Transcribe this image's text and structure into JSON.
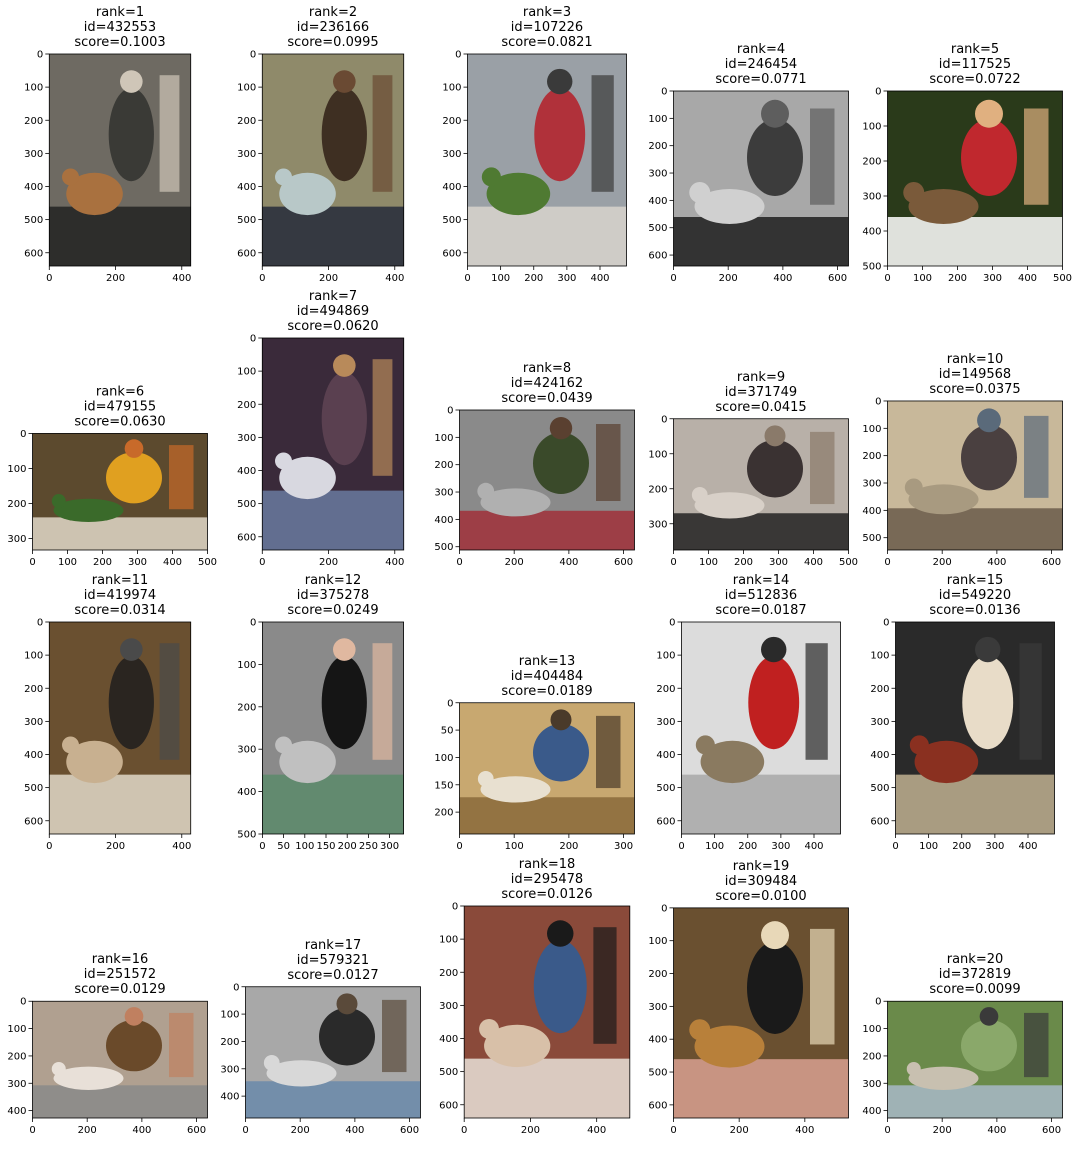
{
  "chart_data": [
    {
      "type": "image",
      "rank_label": "rank=1",
      "id_label": "id=432553",
      "score_label": "score=0.1003",
      "rank": 1,
      "id": 432553,
      "score": 0.1003,
      "width": 427,
      "height": 640,
      "xticks": [
        0,
        200,
        400
      ],
      "yticks": [
        0,
        100,
        200,
        300,
        400,
        500,
        600
      ],
      "colors": {
        "bg": "#6e6a62",
        "c1": "#3a3a36",
        "c2": "#a9713f",
        "c3": "#cfc6b8",
        "c4": "#222222"
      }
    },
    {
      "type": "image",
      "rank_label": "rank=2",
      "id_label": "id=236166",
      "score_label": "score=0.0995",
      "rank": 2,
      "id": 236166,
      "score": 0.0995,
      "width": 427,
      "height": 640,
      "xticks": [
        0,
        200,
        400
      ],
      "yticks": [
        0,
        100,
        200,
        300,
        400,
        500,
        600
      ],
      "colors": {
        "bg": "#8f8a6a",
        "c1": "#3e2f22",
        "c2": "#b8c8c8",
        "c3": "#6a4a33",
        "c4": "#262a3a"
      }
    },
    {
      "type": "image",
      "rank_label": "rank=3",
      "id_label": "id=107226",
      "score_label": "score=0.0821",
      "rank": 3,
      "id": 107226,
      "score": 0.0821,
      "width": 480,
      "height": 640,
      "xticks": [
        0,
        100,
        200,
        300,
        400
      ],
      "yticks": [
        0,
        100,
        200,
        300,
        400,
        500,
        600
      ],
      "colors": {
        "bg": "#9aa0a6",
        "c1": "#b0313a",
        "c2": "#4f7a32",
        "c3": "#3a3a3a",
        "c4": "#d8d4cc"
      }
    },
    {
      "type": "image",
      "rank_label": "rank=4",
      "id_label": "id=246454",
      "score_label": "score=0.0771",
      "rank": 4,
      "id": 246454,
      "score": 0.0771,
      "width": 640,
      "height": 640,
      "xticks": [
        0,
        200,
        400,
        600
      ],
      "yticks": [
        0,
        100,
        200,
        300,
        400,
        500,
        600
      ],
      "colors": {
        "bg": "#a8a8a8",
        "c1": "#3c3c3c",
        "c2": "#d0d0d0",
        "c3": "#5e5e5e",
        "c4": "#1e1e1e"
      }
    },
    {
      "type": "image",
      "rank_label": "rank=5",
      "id_label": "id=117525",
      "score_label": "score=0.0722",
      "rank": 5,
      "id": 117525,
      "score": 0.0722,
      "width": 500,
      "height": 500,
      "xticks": [
        0,
        100,
        200,
        300,
        400,
        500
      ],
      "yticks": [
        0,
        100,
        200,
        300,
        400,
        500
      ],
      "colors": {
        "bg": "#2a3a1a",
        "c1": "#c0282e",
        "c2": "#7a5a3a",
        "c3": "#e0b080",
        "c4": "#ffffff"
      }
    },
    {
      "type": "image",
      "rank_label": "rank=6",
      "id_label": "id=479155",
      "score_label": "score=0.0630",
      "rank": 6,
      "id": 479155,
      "score": 0.063,
      "width": 500,
      "height": 333,
      "xticks": [
        0,
        100,
        200,
        300,
        400,
        500
      ],
      "yticks": [
        0,
        100,
        200,
        300
      ],
      "colors": {
        "bg": "#5c4a2e",
        "c1": "#e0a020",
        "c2": "#3a6a2a",
        "c3": "#c86a2a",
        "c4": "#e0d8c8"
      }
    },
    {
      "type": "image",
      "rank_label": "rank=7",
      "id_label": "id=494869",
      "score_label": "score=0.0620",
      "rank": 7,
      "id": 494869,
      "score": 0.062,
      "width": 427,
      "height": 640,
      "xticks": [
        0,
        200,
        400
      ],
      "yticks": [
        0,
        100,
        200,
        300,
        400,
        500,
        600
      ],
      "colors": {
        "bg": "#3a2a3a",
        "c1": "#5a4050",
        "c2": "#d8d8e0",
        "c3": "#b88a5a",
        "c4": "#6a7aa0"
      }
    },
    {
      "type": "image",
      "rank_label": "rank=8",
      "id_label": "id=424162",
      "score_label": "score=0.0439",
      "rank": 8,
      "id": 424162,
      "score": 0.0439,
      "width": 640,
      "height": 512,
      "xticks": [
        0,
        200,
        400,
        600
      ],
      "yticks": [
        0,
        100,
        200,
        300,
        400,
        500
      ],
      "colors": {
        "bg": "#8a8a8a",
        "c1": "#3a4a2a",
        "c2": "#b0b0b0",
        "c3": "#5a4030",
        "c4": "#a0303a"
      }
    },
    {
      "type": "image",
      "rank_label": "rank=9",
      "id_label": "id=371749",
      "score_label": "score=0.0415",
      "rank": 9,
      "id": 371749,
      "score": 0.0415,
      "width": 500,
      "height": 375,
      "xticks": [
        0,
        100,
        200,
        300,
        400,
        500
      ],
      "yticks": [
        0,
        100,
        200,
        300
      ],
      "colors": {
        "bg": "#b8b0a8",
        "c1": "#3a3232",
        "c2": "#d8d0c8",
        "c3": "#8a7a6a",
        "c4": "#222222"
      }
    },
    {
      "type": "image",
      "rank_label": "rank=10",
      "id_label": "id=149568",
      "score_label": "score=0.0375",
      "rank": 10,
      "id": 149568,
      "score": 0.0375,
      "width": 640,
      "height": 545,
      "xticks": [
        0,
        200,
        400,
        600
      ],
      "yticks": [
        0,
        100,
        200,
        300,
        400,
        500
      ],
      "colors": {
        "bg": "#c8b89a",
        "c1": "#4a4040",
        "c2": "#a89a80",
        "c3": "#5a6a7a",
        "c4": "#6a5a4a"
      }
    },
    {
      "type": "image",
      "rank_label": "rank=11",
      "id_label": "id=419974",
      "score_label": "score=0.0314",
      "rank": 11,
      "id": 419974,
      "score": 0.0314,
      "width": 427,
      "height": 640,
      "xticks": [
        0,
        200,
        400
      ],
      "yticks": [
        0,
        100,
        200,
        300,
        400,
        500,
        600
      ],
      "colors": {
        "bg": "#6a5030",
        "c1": "#2a2520",
        "c2": "#c8b090",
        "c3": "#4a4a4a",
        "c4": "#e0d8c8"
      }
    },
    {
      "type": "image",
      "rank_label": "rank=12",
      "id_label": "id=375278",
      "score_label": "score=0.0249",
      "rank": 12,
      "id": 375278,
      "score": 0.0249,
      "width": 333,
      "height": 500,
      "xticks": [
        0,
        50,
        100,
        150,
        200,
        250,
        300
      ],
      "yticks": [
        0,
        100,
        200,
        300,
        400,
        500
      ],
      "colors": {
        "bg": "#8a8a8a",
        "c1": "#151515",
        "c2": "#c0c0c0",
        "c3": "#e0b8a0",
        "c4": "#5a8a6a"
      }
    },
    {
      "type": "image",
      "rank_label": "rank=13",
      "id_label": "id=404484",
      "score_label": "score=0.0189",
      "rank": 13,
      "id": 404484,
      "score": 0.0189,
      "width": 320,
      "height": 240,
      "xticks": [
        0,
        100,
        200,
        300
      ],
      "yticks": [
        0,
        50,
        100,
        150,
        200
      ],
      "colors": {
        "bg": "#c8a870",
        "c1": "#3a5a8a",
        "c2": "#e8e0d0",
        "c3": "#4a3a2a",
        "c4": "#8a6a3a"
      }
    },
    {
      "type": "image",
      "rank_label": "rank=14",
      "id_label": "id=512836",
      "score_label": "score=0.0187",
      "rank": 14,
      "id": 512836,
      "score": 0.0187,
      "width": 480,
      "height": 640,
      "xticks": [
        0,
        100,
        200,
        300,
        400
      ],
      "yticks": [
        0,
        100,
        200,
        300,
        400,
        500,
        600
      ],
      "colors": {
        "bg": "#dcdcdc",
        "c1": "#c02020",
        "c2": "#8a7a60",
        "c3": "#2a2a2a",
        "c4": "#a8a8a8"
      }
    },
    {
      "type": "image",
      "rank_label": "rank=15",
      "id_label": "id=549220",
      "score_label": "score=0.0136",
      "rank": 15,
      "id": 549220,
      "score": 0.0136,
      "width": 480,
      "height": 640,
      "xticks": [
        0,
        100,
        200,
        300,
        400
      ],
      "yticks": [
        0,
        100,
        200,
        300,
        400,
        500,
        600
      ],
      "colors": {
        "bg": "#2a2a2a",
        "c1": "#e8dcc8",
        "c2": "#8a3020",
        "c3": "#3a3a3a",
        "c4": "#c0b090"
      }
    },
    {
      "type": "image",
      "rank_label": "rank=16",
      "id_label": "id=251572",
      "score_label": "score=0.0129",
      "rank": 16,
      "id": 251572,
      "score": 0.0129,
      "width": 640,
      "height": 427,
      "xticks": [
        0,
        200,
        400,
        600
      ],
      "yticks": [
        0,
        100,
        200,
        300,
        400
      ],
      "colors": {
        "bg": "#b0a090",
        "c1": "#6a4a2a",
        "c2": "#e8e0d8",
        "c3": "#c08060",
        "c4": "#8a8a8a"
      }
    },
    {
      "type": "image",
      "rank_label": "rank=17",
      "id_label": "id=579321",
      "score_label": "score=0.0127",
      "rank": 17,
      "id": 579321,
      "score": 0.0127,
      "width": 640,
      "height": 480,
      "xticks": [
        0,
        200,
        400,
        600
      ],
      "yticks": [
        0,
        100,
        200,
        300,
        400
      ],
      "colors": {
        "bg": "#a8a8a8",
        "c1": "#2a2a2a",
        "c2": "#d8d8d8",
        "c3": "#5a4a3a",
        "c4": "#6a8aaa"
      }
    },
    {
      "type": "image",
      "rank_label": "rank=18",
      "id_label": "id=295478",
      "score_label": "score=0.0126",
      "rank": 18,
      "id": 295478,
      "score": 0.0126,
      "width": 500,
      "height": 640,
      "xticks": [
        0,
        200,
        400
      ],
      "yticks": [
        0,
        100,
        200,
        300,
        400,
        500,
        600
      ],
      "colors": {
        "bg": "#8a4a3a",
        "c1": "#3a5a8a",
        "c2": "#d8c0a8",
        "c3": "#1a1a1a",
        "c4": "#e8e0d8"
      }
    },
    {
      "type": "image",
      "rank_label": "rank=19",
      "id_label": "id=309484",
      "score_label": "score=0.0100",
      "rank": 19,
      "id": 309484,
      "score": 0.01,
      "width": 533,
      "height": 640,
      "xticks": [
        0,
        200,
        400
      ],
      "yticks": [
        0,
        100,
        200,
        300,
        400,
        500,
        600
      ],
      "colors": {
        "bg": "#6a5030",
        "c1": "#1a1a1a",
        "c2": "#b8803a",
        "c3": "#e8d8b8",
        "c4": "#d8a090"
      }
    },
    {
      "type": "image",
      "rank_label": "rank=20",
      "id_label": "id=372819",
      "score_label": "score=0.0099",
      "rank": 20,
      "id": 372819,
      "score": 0.0099,
      "width": 640,
      "height": 427,
      "xticks": [
        0,
        200,
        400,
        600
      ],
      "yticks": [
        0,
        100,
        200,
        300,
        400
      ],
      "colors": {
        "bg": "#6a8a4a",
        "c1": "#8aa86a",
        "c2": "#c8c0b0",
        "c3": "#3a3a3a",
        "c4": "#a8b8c8"
      }
    }
  ]
}
